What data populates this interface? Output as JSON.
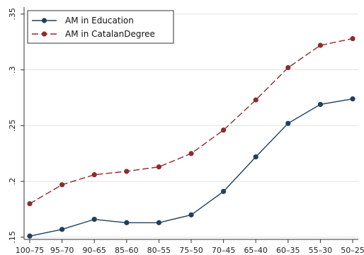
{
  "chart_data": {
    "type": "line",
    "title": "",
    "xlabel": "",
    "ylabel": "",
    "categories": [
      "100–75",
      "95–70",
      "90–65",
      "85–60",
      "80–55",
      "75–50",
      "70–45",
      "65–40",
      "60–35",
      "55–30",
      "50–25"
    ],
    "ylim": [
      0.148,
      0.355
    ],
    "yticks": [
      0.15,
      0.2,
      0.25,
      0.3,
      0.35
    ],
    "ytick_labels": [
      ".15",
      ".2",
      ".25",
      ".3",
      ".35"
    ],
    "grid": "horizontal",
    "legend_position": "top-left",
    "series": [
      {
        "name": "AM in Education",
        "color": "#1f3f5f",
        "line_style": "solid",
        "marker": "circle",
        "values": [
          0.151,
          0.157,
          0.166,
          0.163,
          0.163,
          0.17,
          0.191,
          0.222,
          0.252,
          0.269,
          0.274
        ]
      },
      {
        "name": "AM in CatalanDegree",
        "color": "#8c2d2d",
        "line_style": "dashed",
        "marker": "circle",
        "values": [
          0.18,
          0.197,
          0.206,
          0.209,
          0.213,
          0.225,
          0.246,
          0.273,
          0.302,
          0.322,
          0.328
        ]
      }
    ]
  }
}
